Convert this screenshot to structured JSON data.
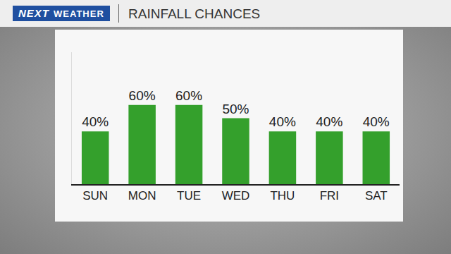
{
  "chart_data": {
    "type": "bar",
    "title": "RAINFALL CHANCES",
    "annotations": [
      "NEXT",
      "WEATHER"
    ],
    "categories": [
      "SUN",
      "MON",
      "TUE",
      "WED",
      "THU",
      "FRI",
      "SAT"
    ],
    "values": [
      40,
      60,
      60,
      50,
      40,
      40,
      40
    ],
    "value_labels": [
      "40%",
      "60%",
      "60%",
      "50%",
      "40%",
      "40%",
      "40%"
    ],
    "color": "#34a02c",
    "ylim": [
      0,
      100
    ],
    "yticks": [],
    "grid": false,
    "data_labels": true,
    "tick_labels": "x"
  }
}
